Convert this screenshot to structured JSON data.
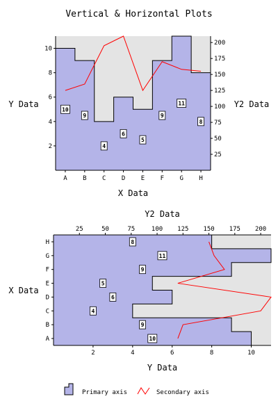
{
  "title": "Vertical & Horizontal Plots",
  "legend": {
    "primary_label": "Primary axis",
    "secondary_label": "Secondary axis"
  },
  "colors": {
    "plot_bg": "#e4e4e4",
    "fill": "#b4b4e8",
    "step_line": "#000000",
    "line": "#ff0000"
  },
  "chart_data": [
    {
      "type": "step-area+line",
      "orientation": "vertical",
      "categories": [
        "A",
        "B",
        "C",
        "D",
        "E",
        "F",
        "G",
        "H"
      ],
      "series": [
        {
          "name": "Primary axis",
          "type": "step-area",
          "axis": "y",
          "values": [
            10,
            9,
            4,
            6,
            5,
            9,
            11,
            8
          ]
        },
        {
          "name": "Secondary axis",
          "type": "line",
          "axis": "y2",
          "values": [
            125,
            135,
            195,
            210,
            125,
            170,
            158,
            155
          ]
        }
      ],
      "xlabel": "X Data",
      "ylabel": "Y Data",
      "y2label": "Y2 Data",
      "ylim": [
        0,
        11
      ],
      "y2lim": [
        0,
        210
      ],
      "yticks": [
        2,
        4,
        6,
        8,
        10
      ],
      "y2ticks": [
        25,
        50,
        75,
        100,
        125,
        150,
        175,
        200
      ],
      "grid": false
    },
    {
      "type": "step-area+line",
      "orientation": "horizontal",
      "categories": [
        "A",
        "B",
        "C",
        "D",
        "E",
        "F",
        "G",
        "H"
      ],
      "series": [
        {
          "name": "Primary axis",
          "type": "step-area",
          "axis": "y",
          "values": [
            10,
            9,
            4,
            6,
            5,
            9,
            11,
            8
          ]
        },
        {
          "name": "Secondary axis",
          "type": "line",
          "axis": "y2",
          "values": [
            120,
            125,
            200,
            210,
            120,
            165,
            155,
            150
          ]
        }
      ],
      "xlabel": "X Data",
      "ylabel": "Y Data",
      "y2label": "Y2 Data",
      "ylim": [
        0,
        11
      ],
      "y2lim": [
        0,
        210
      ],
      "yticks": [
        2,
        4,
        6,
        8,
        10
      ],
      "y2ticks": [
        25,
        50,
        75,
        100,
        125,
        150,
        175,
        200
      ],
      "grid": false
    }
  ]
}
